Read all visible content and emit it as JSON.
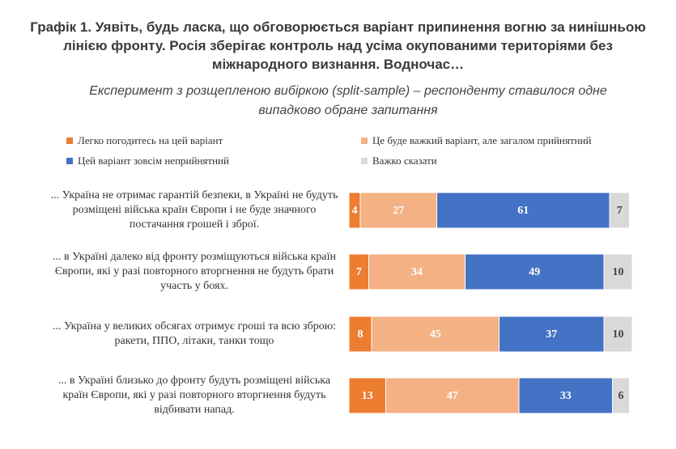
{
  "chart_data": {
    "type": "stacked-bar",
    "title": "Графік 1. Уявіть, будь ласка, що обговорюється варіант припинення вогню за нинішньою лінією фронту. Росія зберігає контроль над усіма окупованими територіями без міжнародного визнання. Водночас…",
    "subtitle": "Експеримент з розщепленою вибіркою (split-sample) – респонденту ставилося одне випадково обране запитання",
    "categories": [
      "... Україна не отримає гарантій безпеки, в Україні не будуть розміщені війська країн Європи і не буде значного постачання грошей і зброї.",
      "... в Україні далеко від фронту розміщуються війська країн Європи, які у разі повторного вторгнення не будуть брати участь у боях.",
      "... Україна у великих обсягах отримує гроші та всю зброю: ракети, ППО, літаки, танки тощо",
      "... в Україні близько до фронту будуть розміщені війська країн Європи, які у разі повторного вторгнення будуть відбивати напад."
    ],
    "xlim": [
      0,
      100
    ],
    "series": [
      {
        "name": "Легко погодитесь на цей варіант",
        "color": "#ed7d31",
        "values": [
          4,
          7,
          8,
          13
        ]
      },
      {
        "name": "Це буде важкий варіант, але загалом прийнятний",
        "color": "#f4b183",
        "values": [
          27,
          34,
          45,
          47
        ]
      },
      {
        "name": "Цей варіант зовсім неприйнятний",
        "color": "#4472c4",
        "values": [
          61,
          49,
          37,
          33
        ]
      },
      {
        "name": "Важко сказати",
        "color": "#d9d9d9",
        "values": [
          7,
          10,
          10,
          6
        ]
      }
    ]
  }
}
